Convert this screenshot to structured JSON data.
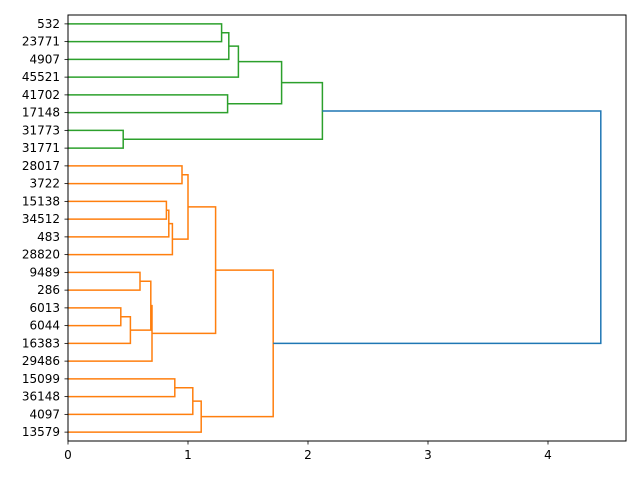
{
  "chart_data": {
    "type": "dendrogram",
    "orientation": "horizontal",
    "title": "",
    "xlabel": "",
    "ylabel": "",
    "xlim": [
      0,
      4.65
    ],
    "xticks": [
      0,
      1,
      2,
      3,
      4
    ],
    "grid": false,
    "colors": {
      "cluster1": "#2ca02c",
      "cluster2": "#ff7f0e",
      "root": "#1f77b4",
      "axis": "#000000"
    },
    "leaves": [
      "532",
      "23771",
      "4907",
      "45521",
      "41702",
      "17148",
      "31773",
      "31771",
      "28017",
      "3722",
      "15138",
      "34512",
      "483",
      "28820",
      "9489",
      "286",
      "6013",
      "6044",
      "16383",
      "29486",
      "15099",
      "36148",
      "4097",
      "13579"
    ],
    "merges": [
      {
        "a": "532",
        "b": "23771",
        "height": 1.28,
        "color": "cluster1"
      },
      {
        "a": "m1",
        "b": "4907",
        "height": 1.34,
        "color": "cluster1"
      },
      {
        "a": "m2",
        "b": "45521",
        "height": 1.42,
        "color": "cluster1"
      },
      {
        "a": "41702",
        "b": "17148",
        "height": 1.33,
        "color": "cluster1"
      },
      {
        "a": "m3",
        "b": "m4",
        "height": 1.78,
        "color": "cluster1"
      },
      {
        "a": "31773",
        "b": "31771",
        "height": 0.46,
        "color": "cluster1"
      },
      {
        "a": "m5",
        "b": "m6",
        "height": 2.12,
        "color": "cluster1"
      },
      {
        "a": "28017",
        "b": "3722",
        "height": 0.95,
        "color": "cluster2"
      },
      {
        "a": "15138",
        "b": "34512",
        "height": 0.82,
        "color": "cluster2"
      },
      {
        "a": "m9",
        "b": "483",
        "height": 0.84,
        "color": "cluster2"
      },
      {
        "a": "m10",
        "b": "28820",
        "height": 0.87,
        "color": "cluster2"
      },
      {
        "a": "m8",
        "b": "m11",
        "height": 1.0,
        "color": "cluster2"
      },
      {
        "a": "9489",
        "b": "286",
        "height": 0.6,
        "color": "cluster2"
      },
      {
        "a": "6013",
        "b": "6044",
        "height": 0.44,
        "color": "cluster2"
      },
      {
        "a": "m14",
        "b": "16383",
        "height": 0.52,
        "color": "cluster2"
      },
      {
        "a": "m13",
        "b": "m15",
        "height": 0.69,
        "color": "cluster2"
      },
      {
        "a": "m16",
        "b": "29486",
        "height": 0.7,
        "color": "cluster2"
      },
      {
        "a": "m12",
        "b": "m17",
        "height": 1.23,
        "color": "cluster2"
      },
      {
        "a": "15099",
        "b": "36148",
        "height": 0.89,
        "color": "cluster2"
      },
      {
        "a": "m19",
        "b": "4097",
        "height": 1.04,
        "color": "cluster2"
      },
      {
        "a": "m20",
        "b": "13579",
        "height": 1.11,
        "color": "cluster2"
      },
      {
        "a": "m18",
        "b": "m21",
        "height": 1.71,
        "color": "cluster2"
      },
      {
        "a": "m7",
        "b": "m22",
        "height": 4.44,
        "color": "root"
      }
    ]
  }
}
